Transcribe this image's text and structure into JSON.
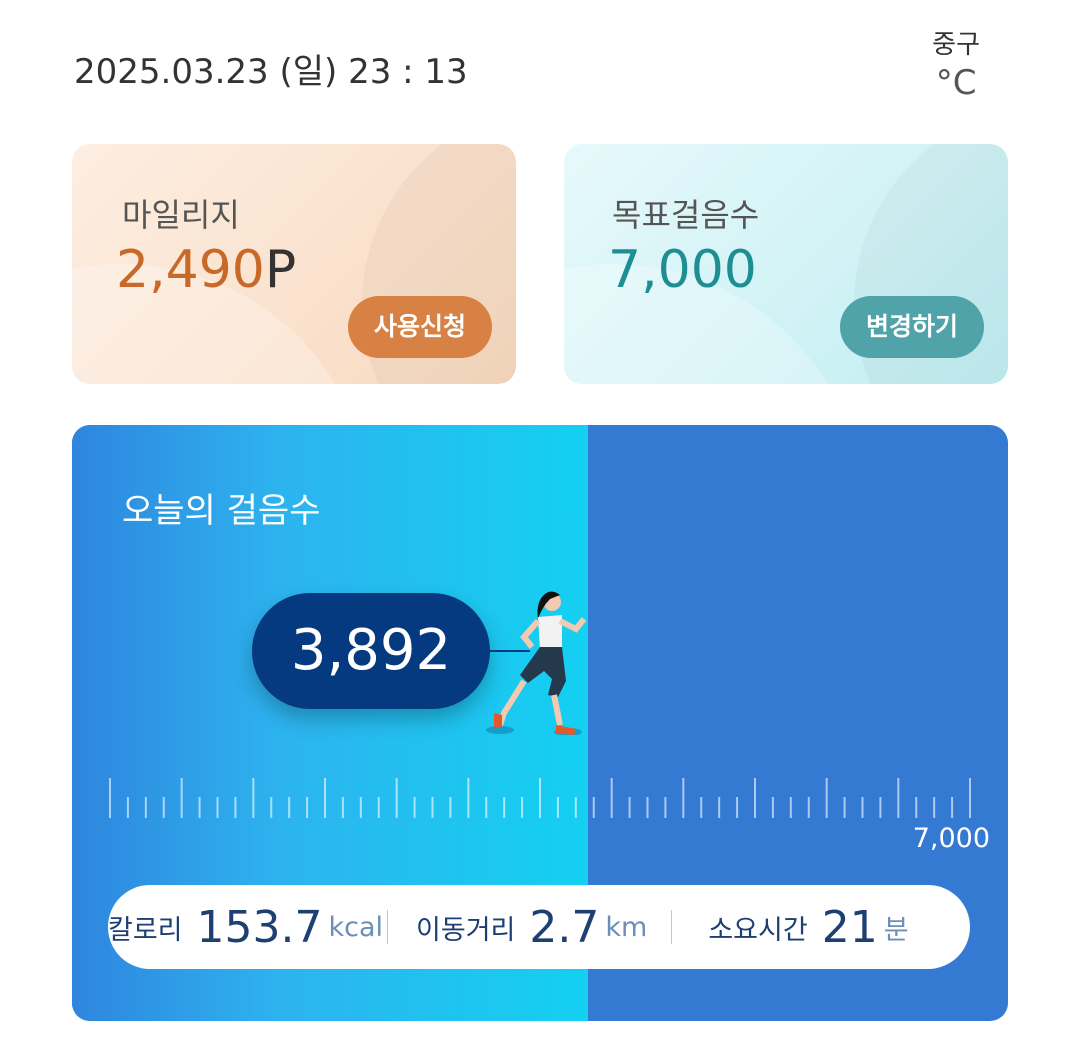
{
  "header": {
    "datetime": "2025.03.23 (일) 23 : 13",
    "location": "중구",
    "temperature_unit": "°C"
  },
  "mileage": {
    "title": "마일리지",
    "value": "2,490",
    "unit": "P",
    "button": "사용신청"
  },
  "goal": {
    "title": "목표걸음수",
    "value": "7,000",
    "button": "변경하기"
  },
  "today": {
    "title": "오늘의 걸음수",
    "steps": "3,892",
    "goal_label": "7,000",
    "progress": 0.556,
    "stats": [
      {
        "label": "칼로리",
        "value": "153.7",
        "unit": "kcal"
      },
      {
        "label": "이동거리",
        "value": "2.7",
        "unit": "km"
      },
      {
        "label": "소요시간",
        "value": "21",
        "unit": "분"
      }
    ]
  },
  "colors": {
    "accent_orange": "#d88144",
    "accent_teal": "#4fa3a9",
    "card_blue": "#3479d2",
    "bubble": "#063a80"
  }
}
